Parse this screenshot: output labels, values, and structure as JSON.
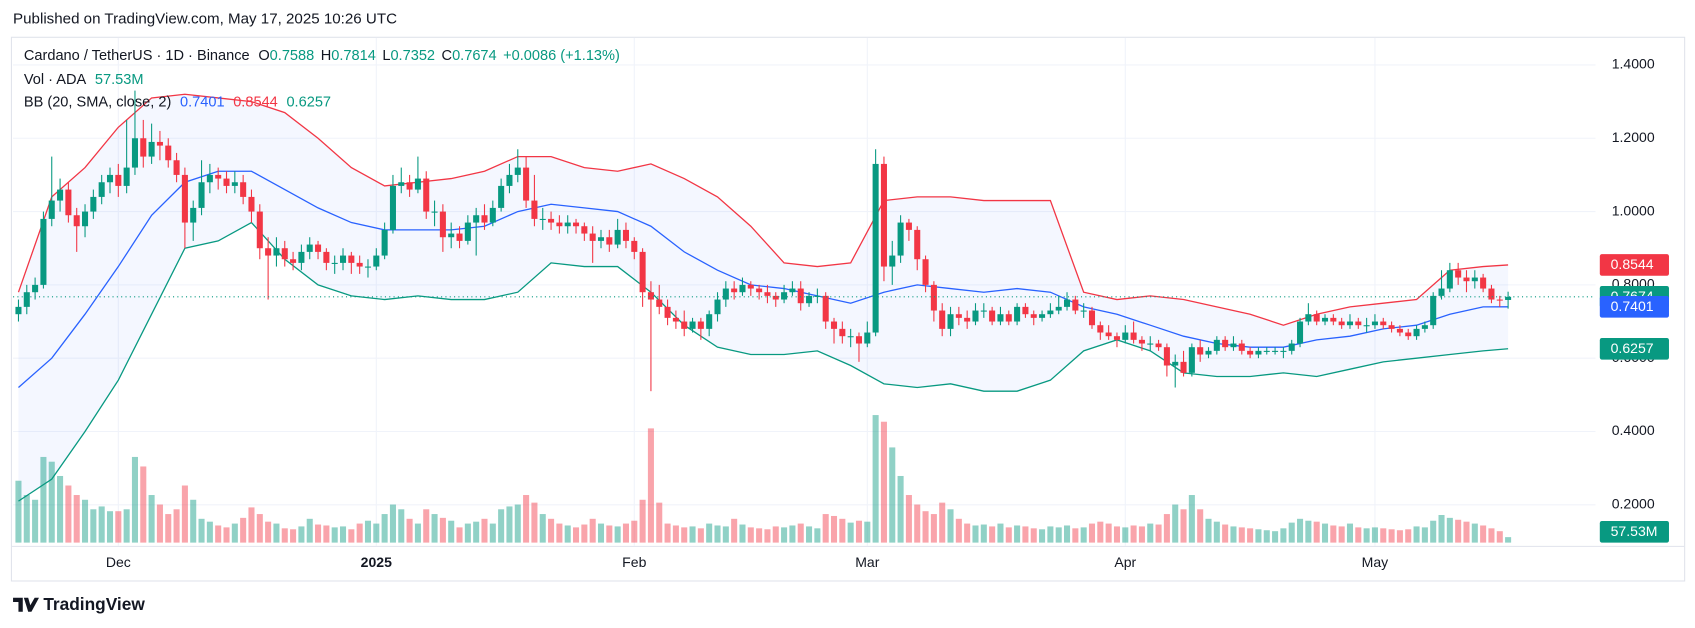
{
  "chart_data": {
    "type": "candlestick",
    "published": "Published on TradingView.com, May 17, 2025 10:26 UTC",
    "title": "Cardano / TetherUS · 1D · Binance",
    "ohlc_labels": [
      "O",
      "H",
      "L",
      "C"
    ],
    "change": "+0.0086 (+1.13%)",
    "volume_title": "Vol · ADA",
    "volume_label": "57.53M",
    "bb_title": "BB (20, SMA, close, 2)",
    "brand": "TradingView",
    "up_color": "#089981",
    "down_color": "#f23645",
    "x": [
      0,
      1,
      2,
      3,
      4,
      5,
      6,
      7,
      8,
      9,
      10,
      11,
      12,
      13,
      14,
      15,
      16,
      17,
      18,
      19,
      20,
      21,
      22,
      23,
      24,
      25,
      26,
      27,
      28,
      29,
      30,
      31,
      32,
      33,
      34,
      35,
      36,
      37,
      38,
      39,
      40,
      41,
      42,
      43,
      44,
      45,
      46,
      47,
      48,
      49,
      50,
      51,
      52,
      53,
      54,
      55,
      56,
      57,
      58,
      59,
      60,
      61,
      62,
      63,
      64,
      65,
      66,
      67,
      68,
      69,
      70,
      71,
      72,
      73,
      74,
      75,
      76,
      77,
      78,
      79,
      80,
      81,
      82,
      83,
      84,
      85,
      86,
      87,
      88,
      89,
      90,
      91,
      92,
      93,
      94,
      95,
      96,
      97,
      98,
      99,
      100,
      101,
      102,
      103,
      104,
      105,
      106,
      107,
      108,
      109,
      110,
      111,
      112,
      113,
      114,
      115,
      116,
      117,
      118,
      119,
      120,
      121,
      122,
      123,
      124,
      125,
      126,
      127,
      128,
      129,
      130,
      131,
      132,
      133,
      134,
      135,
      136,
      137,
      138,
      139,
      140,
      141,
      142,
      143,
      144,
      145,
      146,
      147,
      148,
      149,
      150,
      151,
      152,
      153,
      154,
      155,
      156,
      157,
      158,
      159,
      160,
      161,
      162,
      163,
      164,
      165,
      166,
      167,
      168,
      169,
      170,
      171,
      172,
      173,
      174,
      175,
      176,
      177,
      178,
      179
    ],
    "open": [
      0.72,
      0.74,
      0.78,
      0.8,
      0.98,
      1.03,
      1.06,
      0.99,
      0.96,
      1.0,
      1.04,
      1.08,
      1.1,
      1.07,
      1.12,
      1.2,
      1.15,
      1.19,
      1.18,
      1.14,
      1.1,
      0.97,
      1.01,
      1.08,
      1.1,
      1.09,
      1.07,
      1.08,
      1.04,
      1.0,
      0.9,
      0.88,
      0.9,
      0.87,
      0.86,
      0.89,
      0.91,
      0.89,
      0.86,
      0.86,
      0.88,
      0.86,
      0.85,
      0.85,
      0.88,
      0.95,
      1.07,
      1.08,
      1.06,
      1.09,
      1.0,
      1.0,
      0.93,
      0.94,
      0.92,
      0.97,
      0.99,
      0.97,
      1.01,
      1.07,
      1.1,
      1.12,
      1.03,
      0.98,
      0.98,
      0.97,
      0.96,
      0.97,
      0.96,
      0.94,
      0.92,
      0.93,
      0.91,
      0.95,
      0.92,
      0.89,
      0.78,
      0.76,
      0.74,
      0.71,
      0.7,
      0.68,
      0.7,
      0.68,
      0.72,
      0.76,
      0.79,
      0.78,
      0.8,
      0.79,
      0.78,
      0.77,
      0.76,
      0.78,
      0.79,
      0.75,
      0.77,
      0.77,
      0.7,
      0.68,
      0.66,
      0.66,
      0.64,
      0.67,
      1.13,
      0.85,
      0.88,
      0.97,
      0.95,
      0.87,
      0.8,
      0.73,
      0.68,
      0.72,
      0.71,
      0.7,
      0.73,
      0.73,
      0.7,
      0.72,
      0.7,
      0.74,
      0.72,
      0.71,
      0.72,
      0.73,
      0.74,
      0.76,
      0.73,
      0.73,
      0.69,
      0.67,
      0.66,
      0.65,
      0.67,
      0.65,
      0.64,
      0.64,
      0.63,
      0.58,
      0.59,
      0.56,
      0.63,
      0.61,
      0.62,
      0.65,
      0.63,
      0.64,
      0.62,
      0.61,
      0.62,
      0.62,
      0.62,
      0.62,
      0.64,
      0.7,
      0.72,
      0.7,
      0.71,
      0.7,
      0.69,
      0.7,
      0.69,
      0.69,
      0.7,
      0.69,
      0.68,
      0.67,
      0.66,
      0.68,
      0.69,
      0.77,
      0.79,
      0.84,
      0.82,
      0.81,
      0.82,
      0.79,
      0.76,
      0.7588
    ],
    "high": [
      0.76,
      0.8,
      0.82,
      1.0,
      1.15,
      1.09,
      1.08,
      1.01,
      1.02,
      1.06,
      1.1,
      1.12,
      1.13,
      1.25,
      1.33,
      1.25,
      1.24,
      1.22,
      1.2,
      1.16,
      1.12,
      1.03,
      1.14,
      1.13,
      1.12,
      1.11,
      1.11,
      1.1,
      1.06,
      1.02,
      0.93,
      0.93,
      0.92,
      0.89,
      0.91,
      0.93,
      0.92,
      0.9,
      0.88,
      0.9,
      0.89,
      0.88,
      0.87,
      0.9,
      0.97,
      1.1,
      1.12,
      1.1,
      1.15,
      1.11,
      1.03,
      1.02,
      0.97,
      0.96,
      0.99,
      1.01,
      1.02,
      1.03,
      1.09,
      1.13,
      1.17,
      1.15,
      1.1,
      1.01,
      1.0,
      0.99,
      0.99,
      0.98,
      0.97,
      0.96,
      0.95,
      0.95,
      0.98,
      0.97,
      0.93,
      0.9,
      0.81,
      0.8,
      0.76,
      0.73,
      0.73,
      0.71,
      0.71,
      0.73,
      0.78,
      0.81,
      0.81,
      0.82,
      0.81,
      0.8,
      0.8,
      0.78,
      0.8,
      0.81,
      0.81,
      0.78,
      0.79,
      0.78,
      0.71,
      0.7,
      0.68,
      0.67,
      0.7,
      1.17,
      1.15,
      0.92,
      0.99,
      0.98,
      0.96,
      0.88,
      0.81,
      0.75,
      0.74,
      0.74,
      0.73,
      0.75,
      0.75,
      0.74,
      0.74,
      0.73,
      0.75,
      0.75,
      0.73,
      0.73,
      0.75,
      0.77,
      0.78,
      0.77,
      0.75,
      0.74,
      0.7,
      0.69,
      0.67,
      0.69,
      0.7,
      0.66,
      0.66,
      0.65,
      0.64,
      0.61,
      0.62,
      0.64,
      0.65,
      0.63,
      0.66,
      0.66,
      0.66,
      0.65,
      0.63,
      0.63,
      0.63,
      0.63,
      0.63,
      0.65,
      0.71,
      0.75,
      0.73,
      0.72,
      0.72,
      0.71,
      0.72,
      0.71,
      0.71,
      0.72,
      0.71,
      0.7,
      0.69,
      0.68,
      0.69,
      0.7,
      0.78,
      0.84,
      0.86,
      0.86,
      0.84,
      0.84,
      0.83,
      0.8,
      0.77,
      0.7814
    ],
    "low": [
      0.7,
      0.72,
      0.76,
      0.79,
      0.96,
      1.0,
      0.97,
      0.89,
      0.93,
      0.98,
      1.02,
      1.05,
      1.04,
      1.05,
      1.1,
      1.12,
      1.13,
      1.14,
      1.12,
      1.08,
      0.9,
      0.92,
      0.99,
      1.05,
      1.06,
      1.05,
      1.05,
      1.02,
      0.97,
      0.87,
      0.76,
      0.85,
      0.85,
      0.84,
      0.84,
      0.87,
      0.87,
      0.84,
      0.83,
      0.84,
      0.83,
      0.83,
      0.82,
      0.84,
      0.87,
      0.94,
      1.05,
      1.04,
      1.05,
      0.98,
      0.96,
      0.89,
      0.9,
      0.9,
      0.91,
      0.88,
      0.95,
      0.96,
      1.0,
      1.05,
      1.08,
      1.01,
      0.96,
      0.95,
      0.95,
      0.94,
      0.94,
      0.94,
      0.92,
      0.86,
      0.9,
      0.89,
      0.9,
      0.9,
      0.87,
      0.74,
      0.51,
      0.72,
      0.69,
      0.68,
      0.66,
      0.67,
      0.65,
      0.66,
      0.7,
      0.74,
      0.76,
      0.77,
      0.77,
      0.76,
      0.75,
      0.74,
      0.75,
      0.77,
      0.73,
      0.74,
      0.75,
      0.68,
      0.64,
      0.64,
      0.63,
      0.59,
      0.63,
      0.66,
      0.81,
      0.8,
      0.86,
      0.92,
      0.84,
      0.78,
      0.7,
      0.66,
      0.66,
      0.69,
      0.68,
      0.69,
      0.71,
      0.69,
      0.69,
      0.69,
      0.69,
      0.71,
      0.69,
      0.7,
      0.71,
      0.72,
      0.73,
      0.72,
      0.71,
      0.68,
      0.65,
      0.65,
      0.63,
      0.64,
      0.64,
      0.62,
      0.62,
      0.62,
      0.55,
      0.52,
      0.55,
      0.55,
      0.59,
      0.6,
      0.61,
      0.62,
      0.62,
      0.61,
      0.6,
      0.6,
      0.61,
      0.61,
      0.6,
      0.61,
      0.63,
      0.69,
      0.69,
      0.69,
      0.69,
      0.68,
      0.68,
      0.68,
      0.67,
      0.68,
      0.68,
      0.67,
      0.66,
      0.65,
      0.65,
      0.67,
      0.68,
      0.76,
      0.78,
      0.8,
      0.78,
      0.79,
      0.78,
      0.75,
      0.74,
      0.7352
    ],
    "close": [
      0.74,
      0.78,
      0.8,
      0.98,
      1.03,
      1.06,
      0.99,
      0.96,
      1.0,
      1.04,
      1.08,
      1.1,
      1.07,
      1.12,
      1.2,
      1.15,
      1.19,
      1.18,
      1.14,
      1.1,
      0.97,
      1.01,
      1.08,
      1.1,
      1.09,
      1.07,
      1.08,
      1.04,
      1.0,
      0.9,
      0.88,
      0.9,
      0.87,
      0.86,
      0.89,
      0.91,
      0.89,
      0.86,
      0.86,
      0.88,
      0.86,
      0.85,
      0.85,
      0.88,
      0.95,
      1.07,
      1.08,
      1.06,
      1.09,
      1.0,
      1.0,
      0.93,
      0.94,
      0.92,
      0.97,
      0.99,
      0.97,
      1.01,
      1.07,
      1.1,
      1.12,
      1.03,
      0.98,
      0.98,
      0.97,
      0.96,
      0.97,
      0.96,
      0.94,
      0.92,
      0.93,
      0.91,
      0.95,
      0.92,
      0.89,
      0.78,
      0.76,
      0.74,
      0.71,
      0.7,
      0.68,
      0.7,
      0.68,
      0.72,
      0.76,
      0.79,
      0.78,
      0.8,
      0.79,
      0.78,
      0.77,
      0.76,
      0.78,
      0.79,
      0.75,
      0.77,
      0.77,
      0.7,
      0.68,
      0.66,
      0.66,
      0.64,
      0.67,
      1.13,
      0.85,
      0.88,
      0.97,
      0.95,
      0.87,
      0.8,
      0.73,
      0.68,
      0.72,
      0.71,
      0.7,
      0.73,
      0.73,
      0.7,
      0.72,
      0.7,
      0.74,
      0.72,
      0.71,
      0.72,
      0.73,
      0.74,
      0.76,
      0.73,
      0.73,
      0.69,
      0.67,
      0.66,
      0.65,
      0.67,
      0.65,
      0.64,
      0.64,
      0.63,
      0.58,
      0.59,
      0.56,
      0.63,
      0.61,
      0.62,
      0.65,
      0.63,
      0.64,
      0.62,
      0.61,
      0.62,
      0.62,
      0.62,
      0.62,
      0.64,
      0.7,
      0.72,
      0.7,
      0.71,
      0.7,
      0.69,
      0.7,
      0.69,
      0.69,
      0.7,
      0.69,
      0.68,
      0.67,
      0.66,
      0.68,
      0.69,
      0.77,
      0.79,
      0.84,
      0.82,
      0.81,
      0.82,
      0.79,
      0.76,
      0.7588,
      0.7674
    ],
    "volume": [
      650,
      500,
      450,
      900,
      850,
      700,
      600,
      500,
      450,
      350,
      380,
      330,
      330,
      350,
      900,
      800,
      500,
      400,
      300,
      350,
      600,
      450,
      250,
      220,
      180,
      160,
      200,
      260,
      370,
      300,
      220,
      200,
      150,
      140,
      170,
      250,
      190,
      180,
      160,
      170,
      140,
      200,
      230,
      200,
      300,
      400,
      350,
      250,
      200,
      350,
      300,
      260,
      230,
      160,
      200,
      220,
      250,
      200,
      350,
      380,
      400,
      500,
      420,
      300,
      250,
      200,
      180,
      160,
      190,
      250,
      200,
      180,
      170,
      200,
      230,
      450,
      1200,
      420,
      200,
      180,
      160,
      170,
      150,
      200,
      180,
      170,
      250,
      190,
      160,
      150,
      140,
      170,
      160,
      180,
      200,
      170,
      150,
      300,
      280,
      250,
      210,
      230,
      220,
      1340,
      1270,
      1000,
      700,
      500,
      400,
      330,
      300,
      420,
      350,
      250,
      200,
      180,
      190,
      170,
      200,
      160,
      180,
      170,
      150,
      140,
      170,
      160,
      180,
      150,
      160,
      200,
      220,
      200,
      170,
      160,
      180,
      170,
      200,
      190,
      300,
      400,
      350,
      500,
      350,
      250,
      220,
      190,
      170,
      160,
      150,
      140,
      130,
      120,
      150,
      210,
      250,
      230,
      220,
      200,
      180,
      170,
      200,
      160,
      150,
      160,
      150,
      140,
      130,
      140,
      170,
      160,
      230,
      290,
      260,
      240,
      220,
      200,
      180,
      150,
      120,
      57.53
    ],
    "bb": {
      "x": [
        0,
        4,
        8,
        12,
        16,
        20,
        24,
        28,
        32,
        36,
        40,
        44,
        48,
        52,
        56,
        60,
        64,
        68,
        72,
        76,
        80,
        84,
        88,
        92,
        96,
        100,
        104,
        108,
        112,
        116,
        120,
        124,
        128,
        132,
        136,
        140,
        144,
        148,
        152,
        156,
        160,
        164,
        168,
        172,
        176,
        179
      ],
      "basis": [
        0.52,
        0.6,
        0.72,
        0.85,
        0.99,
        1.08,
        1.11,
        1.11,
        1.06,
        1.01,
        0.97,
        0.95,
        0.95,
        0.95,
        0.96,
        1.0,
        1.02,
        1.01,
        1.0,
        0.96,
        0.89,
        0.84,
        0.8,
        0.79,
        0.77,
        0.75,
        0.78,
        0.8,
        0.79,
        0.78,
        0.79,
        0.78,
        0.74,
        0.72,
        0.69,
        0.66,
        0.64,
        0.63,
        0.63,
        0.65,
        0.66,
        0.68,
        0.69,
        0.72,
        0.74,
        0.7401
      ],
      "upper": [
        0.78,
        1.04,
        1.12,
        1.23,
        1.31,
        1.32,
        1.31,
        1.3,
        1.27,
        1.2,
        1.12,
        1.07,
        1.08,
        1.09,
        1.11,
        1.15,
        1.15,
        1.12,
        1.11,
        1.13,
        1.09,
        1.04,
        0.96,
        0.86,
        0.85,
        0.86,
        1.03,
        1.04,
        1.04,
        1.03,
        1.03,
        1.03,
        0.78,
        0.76,
        0.77,
        0.76,
        0.74,
        0.72,
        0.69,
        0.72,
        0.74,
        0.75,
        0.76,
        0.84,
        0.85,
        0.8544
      ],
      "lower": [
        0.21,
        0.27,
        0.4,
        0.54,
        0.72,
        0.9,
        0.92,
        0.97,
        0.87,
        0.8,
        0.77,
        0.76,
        0.77,
        0.76,
        0.76,
        0.78,
        0.86,
        0.85,
        0.85,
        0.78,
        0.69,
        0.63,
        0.61,
        0.61,
        0.62,
        0.58,
        0.53,
        0.52,
        0.53,
        0.51,
        0.51,
        0.54,
        0.62,
        0.65,
        0.62,
        0.56,
        0.55,
        0.55,
        0.56,
        0.55,
        0.57,
        0.59,
        0.6,
        0.61,
        0.62,
        0.6257
      ],
      "basis_color": "#2962ff",
      "upper_color": "#f23645",
      "lower_color": "#089981"
    },
    "xlim": [
      -0.65,
      189.5
    ],
    "xticks": [
      {
        "value": 12,
        "label": "Dec"
      },
      {
        "value": 43,
        "label": "2025"
      },
      {
        "value": 74,
        "label": "Feb"
      },
      {
        "value": 102,
        "label": "Mar"
      },
      {
        "value": 133,
        "label": "Apr"
      },
      {
        "value": 163,
        "label": "May"
      }
    ],
    "ylim": [
      0.088,
      1.474
    ],
    "yticks": [
      {
        "value": 0.2,
        "label": "0.2000"
      },
      {
        "value": 0.4,
        "label": "0.4000"
      },
      {
        "value": 0.6,
        "label": "0.6000"
      },
      {
        "value": 0.8,
        "label": "0.8000"
      },
      {
        "value": 1.0,
        "label": "1.0000"
      },
      {
        "value": 1.2,
        "label": "1.2000"
      },
      {
        "value": 1.4,
        "label": "1.4000"
      }
    ],
    "grid": true
  }
}
